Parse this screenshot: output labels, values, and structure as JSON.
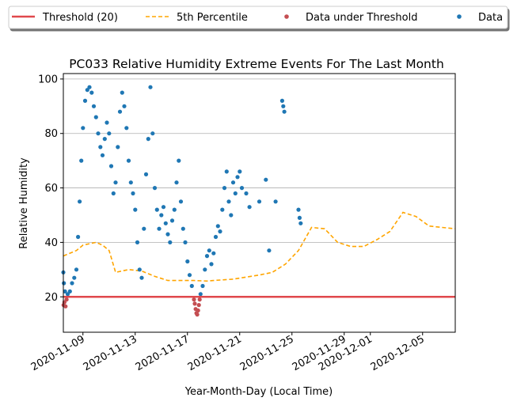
{
  "chart_data": {
    "type": "scatter",
    "title": "PC033 Relative Humidity Extreme Events For The Last Month",
    "xlabel": "Year-Month-Day (Local Time)",
    "ylabel": "Relative Humidity",
    "xlim": [
      "2020-11-07T12:00",
      "2020-12-07T12:00"
    ],
    "ylim": [
      7,
      102
    ],
    "x_ticks": [
      "2020-11-09",
      "2020-11-13",
      "2020-11-17",
      "2020-11-21",
      "2020-11-25",
      "2020-11-29",
      "2020-12-01",
      "2020-12-05"
    ],
    "y_ticks": [
      20,
      40,
      60,
      80,
      100
    ],
    "grid": "horizontal",
    "legend_position": "top",
    "legend": [
      {
        "label": "Threshold (20)",
        "kind": "line",
        "color": "#e0484c"
      },
      {
        "label": "5th Percentile",
        "kind": "dashed-line",
        "color": "#ffa500"
      },
      {
        "label": "Data under Threshold",
        "kind": "point",
        "color": "#c44e52"
      },
      {
        "label": "Data",
        "kind": "point",
        "color": "#1f77b4"
      }
    ],
    "series": [
      {
        "name": "Threshold (20)",
        "type": "line",
        "color": "#e0484c",
        "y": 20
      },
      {
        "name": "5th Percentile",
        "type": "dashed-line",
        "color": "#ffa500",
        "points": [
          [
            "2020-11-07T12:00",
            35
          ],
          [
            "2020-11-08T12:00",
            37
          ],
          [
            "2020-11-09T00:00",
            39
          ],
          [
            "2020-11-09T12:00",
            39.5
          ],
          [
            "2020-11-10T00:00",
            40
          ],
          [
            "2020-11-10T12:00",
            39
          ],
          [
            "2020-11-11T00:00",
            37
          ],
          [
            "2020-11-11T12:00",
            29
          ],
          [
            "2020-11-12T12:00",
            30
          ],
          [
            "2020-11-13T12:00",
            29.5
          ],
          [
            "2020-11-14T12:00",
            27.5
          ],
          [
            "2020-11-15T12:00",
            26
          ],
          [
            "2020-11-17T12:00",
            26
          ],
          [
            "2020-11-18T12:00",
            25.8
          ],
          [
            "2020-11-19T00:00",
            26
          ],
          [
            "2020-11-20T12:00",
            26.5
          ],
          [
            "2020-11-22T12:00",
            28
          ],
          [
            "2020-11-23T12:00",
            29
          ],
          [
            "2020-11-24T12:00",
            32
          ],
          [
            "2020-11-25T12:00",
            37
          ],
          [
            "2020-11-26T12:00",
            45.5
          ],
          [
            "2020-11-27T12:00",
            45
          ],
          [
            "2020-11-28T12:00",
            40
          ],
          [
            "2020-11-29T12:00",
            38.5
          ],
          [
            "2020-11-30T12:00",
            38.5
          ],
          [
            "2020-12-01T12:00",
            41
          ],
          [
            "2020-12-02T12:00",
            44
          ],
          [
            "2020-12-03T12:00",
            51
          ],
          [
            "2020-12-04T12:00",
            49.5
          ],
          [
            "2020-12-05T12:00",
            46
          ],
          [
            "2020-12-07T12:00",
            45
          ]
        ]
      },
      {
        "name": "Data under Threshold",
        "type": "scatter",
        "color": "#c44e52",
        "points": [
          [
            "2020-11-07T12:30",
            17
          ],
          [
            "2020-11-07T14:00",
            18
          ],
          [
            "2020-11-07T16:00",
            16.5
          ],
          [
            "2020-11-07T18:00",
            19
          ],
          [
            "2020-11-17T12:00",
            19
          ],
          [
            "2020-11-17T13:30",
            17.5
          ],
          [
            "2020-11-17T15:00",
            15.5
          ],
          [
            "2020-11-17T16:30",
            14
          ],
          [
            "2020-11-17T18:00",
            13.5
          ],
          [
            "2020-11-17T19:30",
            15
          ],
          [
            "2020-11-17T21:00",
            17
          ],
          [
            "2020-11-17T22:30",
            19
          ]
        ]
      },
      {
        "name": "Data",
        "type": "scatter",
        "color": "#1f77b4",
        "points": [
          [
            "2020-11-07T12:00",
            29
          ],
          [
            "2020-11-07T13:00",
            25
          ],
          [
            "2020-11-07T15:00",
            22
          ],
          [
            "2020-11-07T20:00",
            21
          ],
          [
            "2020-11-08T00:00",
            22
          ],
          [
            "2020-11-08T04:00",
            25
          ],
          [
            "2020-11-08T08:00",
            27
          ],
          [
            "2020-11-08T12:00",
            30
          ],
          [
            "2020-11-08T15:00",
            42
          ],
          [
            "2020-11-08T18:00",
            55
          ],
          [
            "2020-11-08T21:00",
            70
          ],
          [
            "2020-11-09T00:00",
            82
          ],
          [
            "2020-11-09T04:00",
            92
          ],
          [
            "2020-11-09T08:00",
            96
          ],
          [
            "2020-11-09T12:00",
            97
          ],
          [
            "2020-11-09T16:00",
            95
          ],
          [
            "2020-11-09T20:00",
            90
          ],
          [
            "2020-11-10T00:00",
            86
          ],
          [
            "2020-11-10T04:00",
            80
          ],
          [
            "2020-11-10T08:00",
            75
          ],
          [
            "2020-11-10T12:00",
            72
          ],
          [
            "2020-11-10T16:00",
            78
          ],
          [
            "2020-11-10T20:00",
            84
          ],
          [
            "2020-11-11T00:00",
            80
          ],
          [
            "2020-11-11T04:00",
            68
          ],
          [
            "2020-11-11T08:00",
            58
          ],
          [
            "2020-11-11T12:00",
            62
          ],
          [
            "2020-11-11T16:00",
            75
          ],
          [
            "2020-11-11T20:00",
            88
          ],
          [
            "2020-11-12T00:00",
            95
          ],
          [
            "2020-11-12T04:00",
            90
          ],
          [
            "2020-11-12T08:00",
            82
          ],
          [
            "2020-11-12T12:00",
            70
          ],
          [
            "2020-11-12T16:00",
            62
          ],
          [
            "2020-11-12T20:00",
            58
          ],
          [
            "2020-11-13T00:00",
            52
          ],
          [
            "2020-11-13T04:00",
            40
          ],
          [
            "2020-11-13T08:00",
            30
          ],
          [
            "2020-11-13T12:00",
            27
          ],
          [
            "2020-11-13T16:00",
            45
          ],
          [
            "2020-11-13T20:00",
            65
          ],
          [
            "2020-11-14T00:00",
            78
          ],
          [
            "2020-11-14T04:00",
            97
          ],
          [
            "2020-11-14T08:00",
            80
          ],
          [
            "2020-11-14T12:00",
            60
          ],
          [
            "2020-11-14T16:00",
            52
          ],
          [
            "2020-11-14T20:00",
            45
          ],
          [
            "2020-11-15T00:00",
            50
          ],
          [
            "2020-11-15T04:00",
            53
          ],
          [
            "2020-11-15T08:00",
            47
          ],
          [
            "2020-11-15T12:00",
            43
          ],
          [
            "2020-11-15T16:00",
            40
          ],
          [
            "2020-11-15T20:00",
            48
          ],
          [
            "2020-11-16T00:00",
            52
          ],
          [
            "2020-11-16T04:00",
            62
          ],
          [
            "2020-11-16T08:00",
            70
          ],
          [
            "2020-11-16T12:00",
            55
          ],
          [
            "2020-11-16T16:00",
            45
          ],
          [
            "2020-11-16T20:00",
            40
          ],
          [
            "2020-11-17T00:00",
            33
          ],
          [
            "2020-11-17T04:00",
            28
          ],
          [
            "2020-11-17T08:00",
            24
          ],
          [
            "2020-11-18T00:00",
            21
          ],
          [
            "2020-11-18T04:00",
            24
          ],
          [
            "2020-11-18T08:00",
            30
          ],
          [
            "2020-11-18T12:00",
            35
          ],
          [
            "2020-11-18T16:00",
            37
          ],
          [
            "2020-11-18T20:00",
            32
          ],
          [
            "2020-11-19T00:00",
            36
          ],
          [
            "2020-11-19T04:00",
            42
          ],
          [
            "2020-11-19T08:00",
            46
          ],
          [
            "2020-11-19T12:00",
            44
          ],
          [
            "2020-11-19T16:00",
            52
          ],
          [
            "2020-11-19T20:00",
            60
          ],
          [
            "2020-11-20T00:00",
            66
          ],
          [
            "2020-11-20T04:00",
            55
          ],
          [
            "2020-11-20T08:00",
            50
          ],
          [
            "2020-11-20T12:00",
            62
          ],
          [
            "2020-11-20T16:00",
            58
          ],
          [
            "2020-11-20T20:00",
            64
          ],
          [
            "2020-11-21T00:00",
            66
          ],
          [
            "2020-11-21T04:00",
            60
          ],
          [
            "2020-11-21T12:00",
            58
          ],
          [
            "2020-11-21T18:00",
            53
          ],
          [
            "2020-11-22T12:00",
            55
          ],
          [
            "2020-11-23T00:00",
            63
          ],
          [
            "2020-11-23T06:00",
            37
          ],
          [
            "2020-11-23T18:00",
            55
          ],
          [
            "2020-11-24T06:00",
            92
          ],
          [
            "2020-11-24T08:00",
            90
          ],
          [
            "2020-11-24T10:00",
            88
          ],
          [
            "2020-11-25T12:00",
            52
          ],
          [
            "2020-11-25T14:00",
            49
          ],
          [
            "2020-11-25T16:00",
            47
          ]
        ]
      }
    ]
  }
}
